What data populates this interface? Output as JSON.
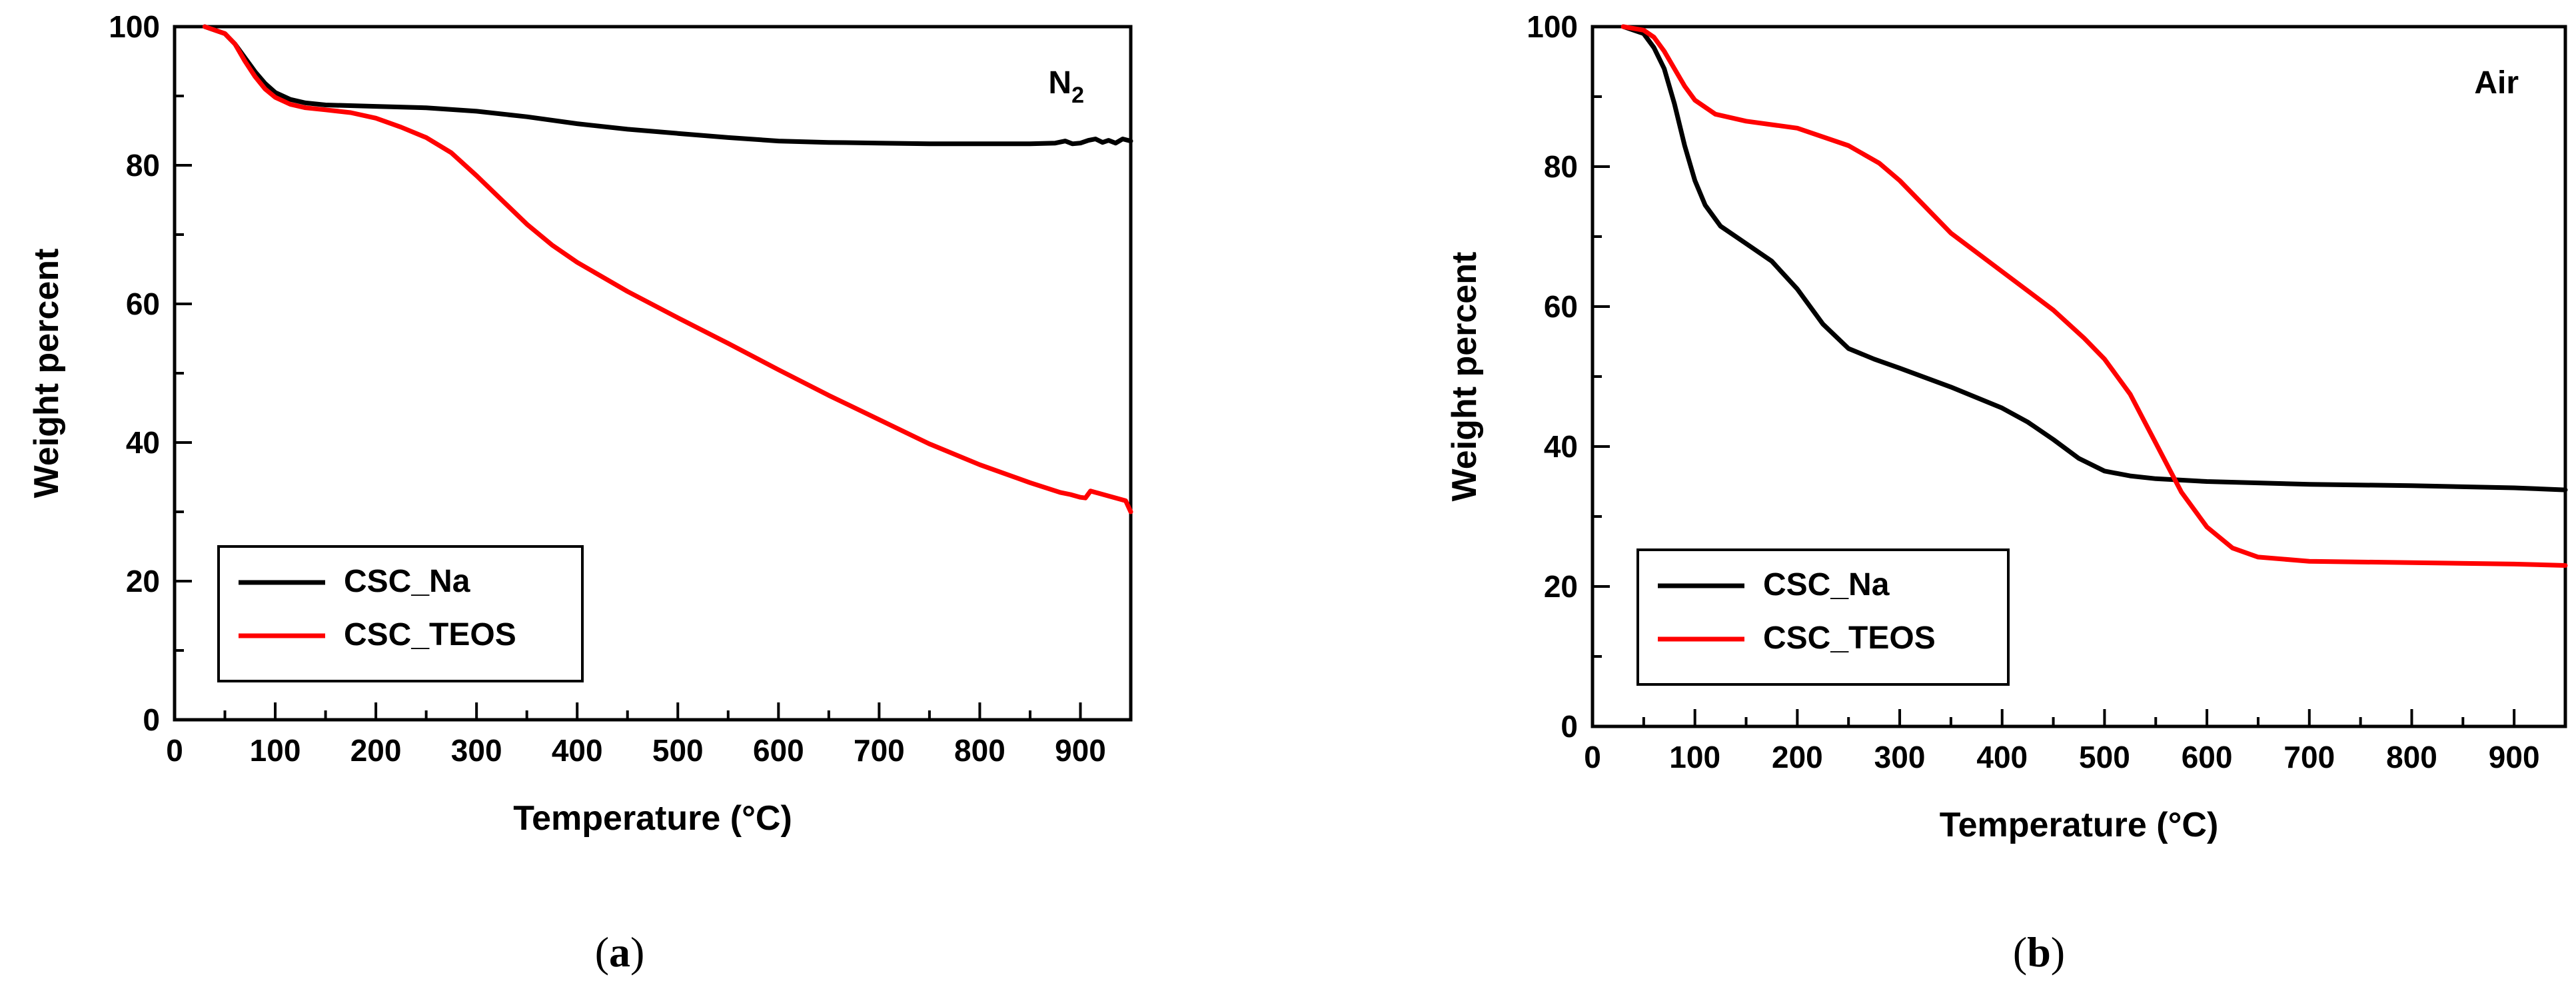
{
  "chart_data": [
    {
      "type": "line",
      "panel_label": "a",
      "annotation": "N",
      "annotation_sub": "2",
      "xlabel": "Temperature (°C)",
      "ylabel": "Weight percent",
      "xlim": [
        0,
        950
      ],
      "ylim": [
        0,
        100
      ],
      "xticks": [
        0,
        100,
        200,
        300,
        400,
        500,
        600,
        700,
        800,
        900
      ],
      "yticks": [
        0,
        20,
        40,
        60,
        80,
        100
      ],
      "legend_position": "bottom-left",
      "series": [
        {
          "name": "CSC_Na",
          "color": "#000000",
          "points": [
            [
              30,
              100
            ],
            [
              50,
              99
            ],
            [
              60,
              97.5
            ],
            [
              70,
              95.5
            ],
            [
              80,
              93.5
            ],
            [
              90,
              91.8
            ],
            [
              100,
              90.5
            ],
            [
              115,
              89.5
            ],
            [
              130,
              89
            ],
            [
              150,
              88.7
            ],
            [
              200,
              88.5
            ],
            [
              250,
              88.3
            ],
            [
              300,
              87.8
            ],
            [
              350,
              87
            ],
            [
              400,
              86
            ],
            [
              450,
              85.2
            ],
            [
              500,
              84.6
            ],
            [
              550,
              84
            ],
            [
              600,
              83.5
            ],
            [
              650,
              83.3
            ],
            [
              700,
              83.2
            ],
            [
              750,
              83.1
            ],
            [
              800,
              83.1
            ],
            [
              850,
              83.1
            ],
            [
              875,
              83.2
            ],
            [
              885,
              83.5
            ],
            [
              892,
              83.1
            ],
            [
              900,
              83.2
            ],
            [
              908,
              83.6
            ],
            [
              915,
              83.8
            ],
            [
              922,
              83.3
            ],
            [
              928,
              83.6
            ],
            [
              935,
              83.2
            ],
            [
              942,
              83.8
            ],
            [
              950,
              83.5
            ]
          ]
        },
        {
          "name": "CSC_TEOS",
          "color": "#ff0000",
          "points": [
            [
              30,
              100
            ],
            [
              50,
              99
            ],
            [
              60,
              97.5
            ],
            [
              70,
              95
            ],
            [
              80,
              92.8
            ],
            [
              90,
              91
            ],
            [
              100,
              89.8
            ],
            [
              115,
              88.8
            ],
            [
              130,
              88.3
            ],
            [
              150,
              88
            ],
            [
              175,
              87.6
            ],
            [
              200,
              86.8
            ],
            [
              225,
              85.5
            ],
            [
              250,
              84
            ],
            [
              275,
              81.8
            ],
            [
              300,
              78.5
            ],
            [
              325,
              75
            ],
            [
              350,
              71.5
            ],
            [
              375,
              68.5
            ],
            [
              400,
              66
            ],
            [
              450,
              61.8
            ],
            [
              500,
              58
            ],
            [
              550,
              54.3
            ],
            [
              600,
              50.5
            ],
            [
              650,
              46.8
            ],
            [
              700,
              43.3
            ],
            [
              750,
              39.8
            ],
            [
              800,
              36.8
            ],
            [
              850,
              34.2
            ],
            [
              880,
              32.8
            ],
            [
              890,
              32.5
            ],
            [
              900,
              32.1
            ],
            [
              905,
              32
            ],
            [
              910,
              33
            ],
            [
              915,
              32.8
            ],
            [
              930,
              32.2
            ],
            [
              945,
              31.6
            ],
            [
              950,
              30
            ]
          ]
        }
      ]
    },
    {
      "type": "line",
      "panel_label": "b",
      "annotation": "Air",
      "annotation_sub": "",
      "xlabel": "Temperature (°C)",
      "ylabel": "Weight percent",
      "xlim": [
        0,
        950
      ],
      "ylim": [
        0,
        100
      ],
      "xticks": [
        0,
        100,
        200,
        300,
        400,
        500,
        600,
        700,
        800,
        900
      ],
      "yticks": [
        0,
        20,
        40,
        60,
        80,
        100
      ],
      "legend_position": "bottom-left",
      "series": [
        {
          "name": "CSC_Na",
          "color": "#000000",
          "points": [
            [
              30,
              100
            ],
            [
              50,
              99
            ],
            [
              60,
              97
            ],
            [
              70,
              94
            ],
            [
              80,
              89
            ],
            [
              90,
              83
            ],
            [
              100,
              78
            ],
            [
              110,
              74.5
            ],
            [
              125,
              71.5
            ],
            [
              150,
              69
            ],
            [
              175,
              66.5
            ],
            [
              200,
              62.5
            ],
            [
              225,
              57.5
            ],
            [
              250,
              54
            ],
            [
              275,
              52.5
            ],
            [
              300,
              51.2
            ],
            [
              350,
              48.5
            ],
            [
              400,
              45.5
            ],
            [
              425,
              43.5
            ],
            [
              450,
              41
            ],
            [
              475,
              38.3
            ],
            [
              500,
              36.5
            ],
            [
              525,
              35.8
            ],
            [
              550,
              35.4
            ],
            [
              600,
              35
            ],
            [
              700,
              34.6
            ],
            [
              800,
              34.4
            ],
            [
              900,
              34.1
            ],
            [
              950,
              33.8
            ]
          ]
        },
        {
          "name": "CSC_TEOS",
          "color": "#ff0000",
          "points": [
            [
              30,
              100
            ],
            [
              50,
              99.5
            ],
            [
              60,
              98.5
            ],
            [
              70,
              96.5
            ],
            [
              80,
              94
            ],
            [
              90,
              91.5
            ],
            [
              100,
              89.5
            ],
            [
              120,
              87.5
            ],
            [
              150,
              86.5
            ],
            [
              200,
              85.5
            ],
            [
              250,
              83
            ],
            [
              280,
              80.5
            ],
            [
              300,
              78
            ],
            [
              320,
              75
            ],
            [
              350,
              70.5
            ],
            [
              400,
              65
            ],
            [
              450,
              59.5
            ],
            [
              480,
              55.5
            ],
            [
              500,
              52.5
            ],
            [
              525,
              47.5
            ],
            [
              550,
              40.5
            ],
            [
              575,
              33.5
            ],
            [
              600,
              28.5
            ],
            [
              625,
              25.5
            ],
            [
              650,
              24.2
            ],
            [
              700,
              23.6
            ],
            [
              800,
              23.4
            ],
            [
              900,
              23.2
            ],
            [
              950,
              23
            ]
          ]
        }
      ]
    }
  ]
}
